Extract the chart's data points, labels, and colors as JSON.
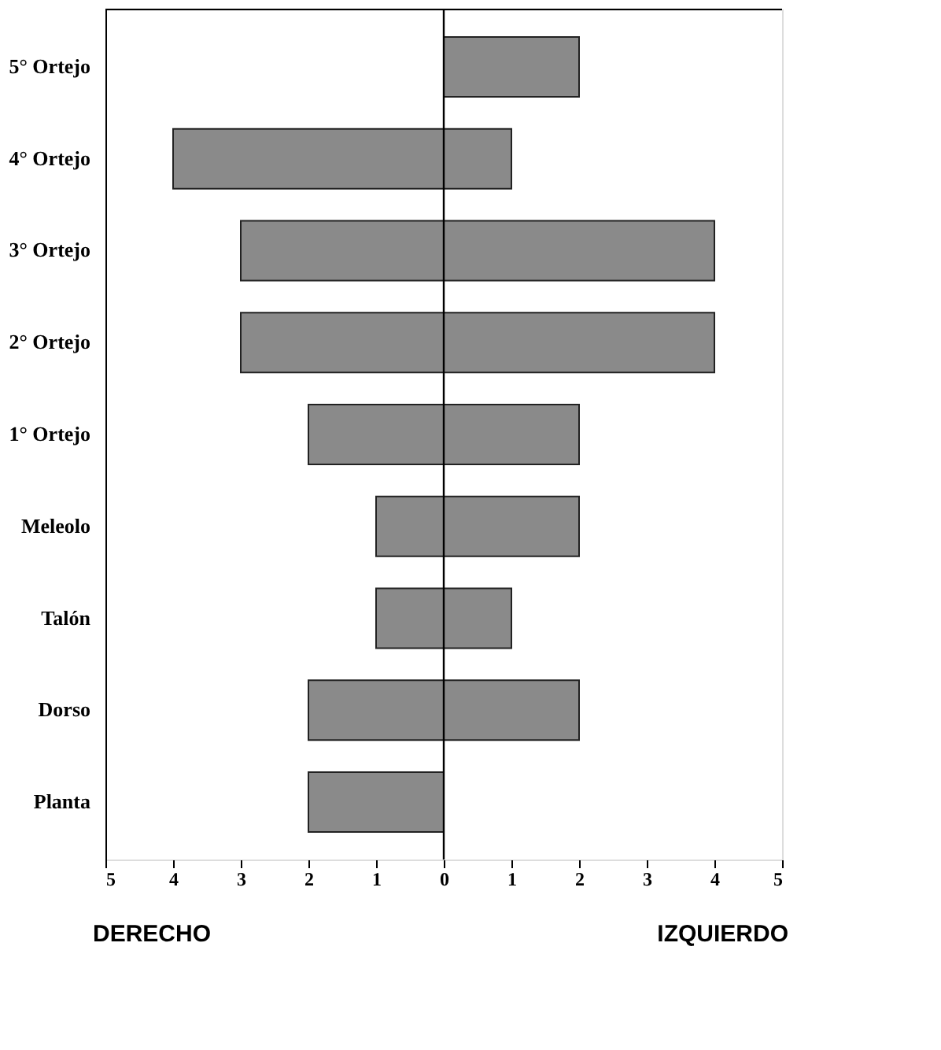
{
  "chart_data": {
    "type": "bar",
    "orientation": "horizontal",
    "categories": [
      "5° Ortejo",
      "4° Ortejo",
      "3° Ortejo",
      "2° Ortejo",
      "1° Ortejo",
      "Meleolo",
      "Talón",
      "Dorso",
      "Planta"
    ],
    "series": [
      {
        "color": "#8a8a8a",
        "values": [
          null,
          -4,
          -3,
          -3,
          -2,
          -1,
          -1,
          -2,
          -2
        ]
      },
      {
        "color": "#8a8a8a",
        "values": [
          2,
          1,
          4,
          4,
          2,
          2,
          1,
          2,
          null
        ]
      }
    ],
    "xlim": [
      -5,
      5
    ],
    "xticks": [
      {
        "value": -5,
        "label": "5"
      },
      {
        "value": -4,
        "label": "4"
      },
      {
        "value": -3,
        "label": "3"
      },
      {
        "value": -2,
        "label": "2"
      },
      {
        "value": -1,
        "label": "1"
      },
      0,
      1,
      2,
      3,
      4,
      5
    ],
    "ref_lines": [
      {
        "axis": "x",
        "value": 0
      }
    ],
    "annotations": [
      "DERECHO",
      "IZQUIERDO"
    ],
    "stacked": true,
    "grid": false
  }
}
